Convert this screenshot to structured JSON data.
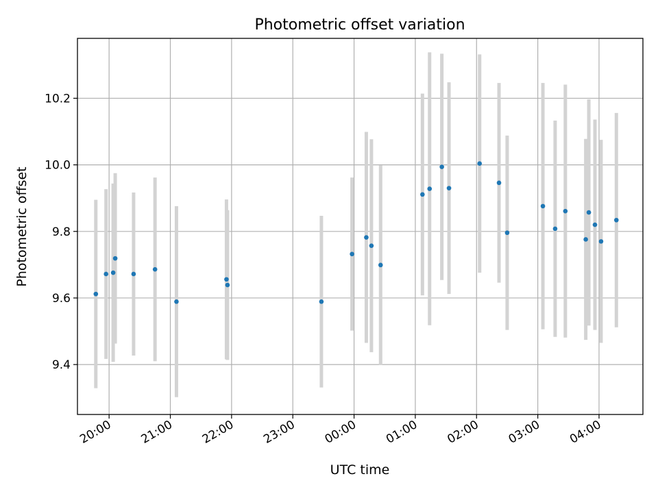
{
  "chart_data": {
    "type": "scatter",
    "title": "Photometric offset variation",
    "xlabel": "UTC time",
    "ylabel": "Photometric offset",
    "x_axis_type": "time",
    "x_ticks": [
      "20:00",
      "21:00",
      "22:00",
      "23:00",
      "00:00",
      "01:00",
      "02:00",
      "03:00",
      "04:00"
    ],
    "y_ticks": [
      "9.4",
      "9.6",
      "9.8",
      "10.0",
      "10.2"
    ],
    "xlim": [
      "19:29",
      "04:43"
    ],
    "ylim": [
      9.25,
      10.38
    ],
    "grid": true,
    "marker_color": "#1f77b4",
    "errorbar_color": "#d3d3d3",
    "series": [
      {
        "points": [
          {
            "x": "19:47",
            "y": 9.612,
            "yerr": 0.283
          },
          {
            "x": "19:57",
            "y": 9.672,
            "yerr": 0.255
          },
          {
            "x": "20:04",
            "y": 9.676,
            "yerr": 0.268
          },
          {
            "x": "20:06",
            "y": 9.719,
            "yerr": 0.256
          },
          {
            "x": "20:24",
            "y": 9.672,
            "yerr": 0.245
          },
          {
            "x": "20:45",
            "y": 9.686,
            "yerr": 0.276
          },
          {
            "x": "21:06",
            "y": 9.589,
            "yerr": 0.287
          },
          {
            "x": "21:55",
            "y": 9.656,
            "yerr": 0.24
          },
          {
            "x": "21:56",
            "y": 9.639,
            "yerr": 0.225
          },
          {
            "x": "23:28",
            "y": 9.589,
            "yerr": 0.258
          },
          {
            "x": "23:58",
            "y": 9.732,
            "yerr": 0.23
          },
          {
            "x": "00:12",
            "y": 9.782,
            "yerr": 0.317
          },
          {
            "x": "00:17",
            "y": 9.757,
            "yerr": 0.32
          },
          {
            "x": "00:26",
            "y": 9.699,
            "yerr": 0.3
          },
          {
            "x": "01:07",
            "y": 9.911,
            "yerr": 0.303
          },
          {
            "x": "01:14",
            "y": 9.928,
            "yerr": 0.41
          },
          {
            "x": "01:26",
            "y": 9.994,
            "yerr": 0.34
          },
          {
            "x": "01:33",
            "y": 9.93,
            "yerr": 0.318
          },
          {
            "x": "02:03",
            "y": 10.004,
            "yerr": 0.328
          },
          {
            "x": "02:22",
            "y": 9.946,
            "yerr": 0.3
          },
          {
            "x": "02:30",
            "y": 9.796,
            "yerr": 0.292
          },
          {
            "x": "03:05",
            "y": 9.876,
            "yerr": 0.37
          },
          {
            "x": "03:17",
            "y": 9.808,
            "yerr": 0.325
          },
          {
            "x": "03:27",
            "y": 9.861,
            "yerr": 0.38
          },
          {
            "x": "03:47",
            "y": 9.776,
            "yerr": 0.302
          },
          {
            "x": "03:50",
            "y": 9.857,
            "yerr": 0.34
          },
          {
            "x": "03:56",
            "y": 9.82,
            "yerr": 0.316
          },
          {
            "x": "04:02",
            "y": 9.77,
            "yerr": 0.305
          },
          {
            "x": "04:17",
            "y": 9.834,
            "yerr": 0.322
          }
        ]
      }
    ]
  }
}
